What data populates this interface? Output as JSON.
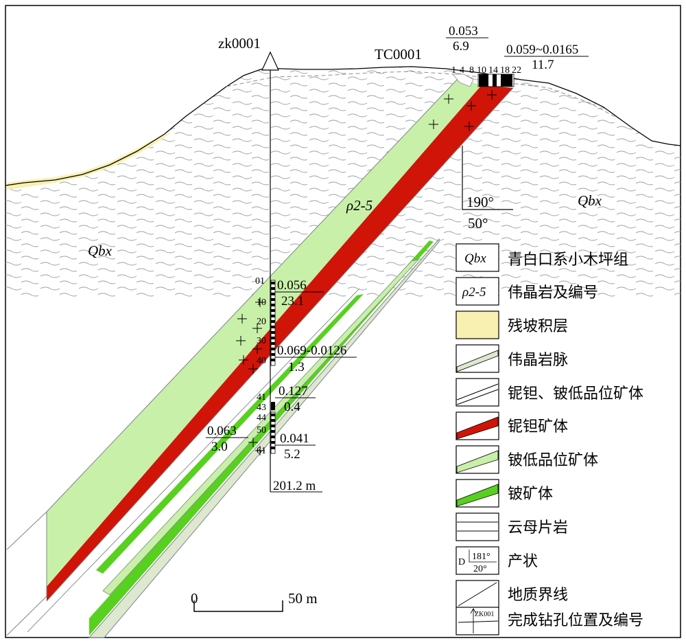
{
  "drill": {
    "name": "zk0001",
    "depth_label": "201.2 m",
    "depth_ticks": [
      "01",
      "10",
      "20",
      "30",
      "40",
      "41",
      "43",
      "44",
      "50",
      "61"
    ]
  },
  "trench": {
    "name": "TC0001",
    "sample_numbers": [
      "1",
      "4",
      "8",
      "10",
      "14",
      "18",
      "22"
    ]
  },
  "grades": [
    {
      "top": "0.053",
      "bottom": "6.9"
    },
    {
      "top": "0.059~0.0165",
      "bottom": "11.7"
    },
    {
      "top": "0.056",
      "bottom": "23.1"
    },
    {
      "top": "0.069-0.0126",
      "bottom": "1.3"
    },
    {
      "top": "0.127",
      "bottom": "0.4"
    },
    {
      "top": "0.063",
      "bottom": "3.0"
    },
    {
      "top": "0.041",
      "bottom": "5.2"
    }
  ],
  "formation_label": "Qbx",
  "dyke_label": "ρ2-5",
  "attitude": {
    "azimuth": "190°",
    "dip": "50°"
  },
  "scale_bar": {
    "start": "0",
    "end": "50 m"
  },
  "legend": [
    {
      "key": "qbx",
      "symbol": "Qbx",
      "label": "青白口系小木坪组"
    },
    {
      "key": "rho",
      "symbol": "ρ2-5",
      "label": "伟晶岩及编号"
    },
    {
      "key": "colluvium",
      "label": "残坡积层"
    },
    {
      "key": "pegvein",
      "label": "伟晶岩脉"
    },
    {
      "key": "lowgrade",
      "label": "铌钽、铍低品位矿体"
    },
    {
      "key": "nbta",
      "label": "铌钽矿体"
    },
    {
      "key": "be_low",
      "label": "铍低品位矿体"
    },
    {
      "key": "be_ore",
      "label": "铍矿体"
    },
    {
      "key": "schist",
      "label": "云母片岩"
    },
    {
      "key": "attitude",
      "symbol_letter": "D",
      "symbol_top": "181°",
      "symbol_bottom": "20°",
      "label": "产状"
    },
    {
      "key": "boundary",
      "label": "地质界线"
    },
    {
      "key": "drillhole",
      "symbol": "ZK001",
      "label": "完成钻孔位置及编号"
    }
  ],
  "colors": {
    "be_low": "#c8f0a8",
    "nbta": "#d01408",
    "be_ore": "#58d020",
    "colluvium": "#f8f0b0",
    "pegvein": "#dde8cf",
    "schist_stroke": "#9aa2a8"
  }
}
